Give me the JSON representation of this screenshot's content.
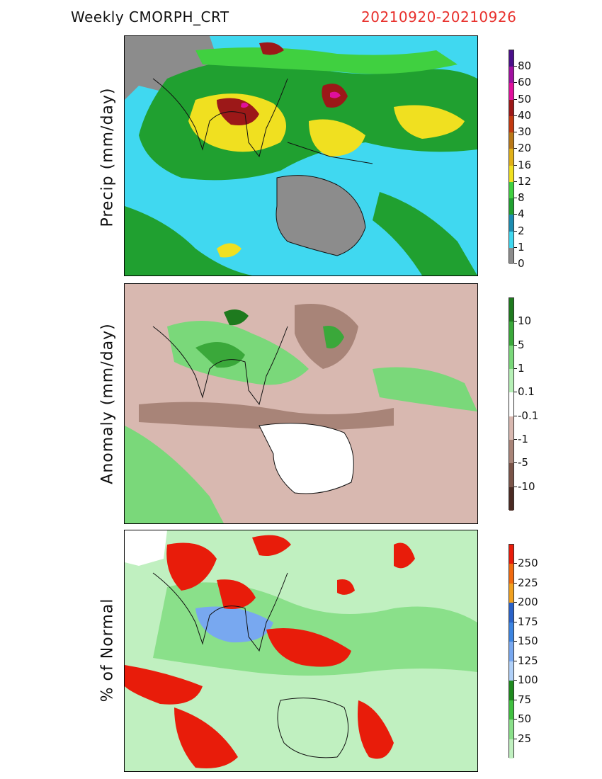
{
  "header": {
    "title": "Weekly  CMORPH_CRT",
    "date_range": "20210920-20210926",
    "date_color": "#e8302c"
  },
  "panels": [
    {
      "ylabel": "Precip  (mm/day)",
      "colorbar": {
        "ticks": [
          "80",
          "60",
          "50",
          "40",
          "30",
          "20",
          "16",
          "12",
          "8",
          "4",
          "2",
          "1",
          "0"
        ],
        "colors": [
          "#4a0f8a",
          "#a010a0",
          "#e0109c",
          "#9c1818",
          "#c23a10",
          "#b87818",
          "#e0b018",
          "#f0e020",
          "#40d040",
          "#20a030",
          "#1c8cb0",
          "#40d8f0",
          "#8c8c8c"
        ]
      },
      "palette": {
        "dry": "#8c8c8c",
        "low": "#40d8f0",
        "light": "#1c8cb0",
        "moderate": "#20a030",
        "moderate2": "#40d040",
        "heavy": "#f0e020",
        "heavy2": "#e0b018",
        "very_heavy": "#9c1818",
        "extreme": "#e0109c"
      }
    },
    {
      "ylabel": "Anomaly  (mm/day)",
      "colorbar": {
        "ticks": [
          "10",
          "5",
          "1",
          "0.1",
          "-0.1",
          "-1",
          "-5",
          "-10"
        ],
        "colors": [
          "#1e7a1e",
          "#3aa83a",
          "#7ad87a",
          "#b6f0b6",
          "#ffffff",
          "#d8b8b0",
          "#a88478",
          "#7a5448",
          "#4a2a22"
        ]
      },
      "palette": {
        "neutral": "#ffffff",
        "dry": "#d8b8b0",
        "dry2": "#a88478",
        "very_dry": "#7a5448",
        "wet": "#7ad87a",
        "wet2": "#3aa83a",
        "very_wet": "#1e7a1e"
      }
    },
    {
      "ylabel": "% of Normal",
      "colorbar": {
        "ticks": [
          "250",
          "225",
          "200",
          "175",
          "150",
          "125",
          "100",
          "75",
          "50",
          "25"
        ],
        "colors": [
          "#e81c0a",
          "#f06a10",
          "#f0a020",
          "#2a62c8",
          "#3c84e0",
          "#78a8f0",
          "#b0d0f8",
          "#1e8a1e",
          "#40c040",
          "#8ae08a",
          "#c0f0c0"
        ]
      },
      "palette": {
        "light_green": "#c0f0c0",
        "green": "#8ae08a",
        "mid_green": "#40c040",
        "blue": "#78a8f0",
        "dark_blue": "#2a62c8",
        "red": "#e81c0a",
        "white": "#ffffff"
      }
    }
  ]
}
